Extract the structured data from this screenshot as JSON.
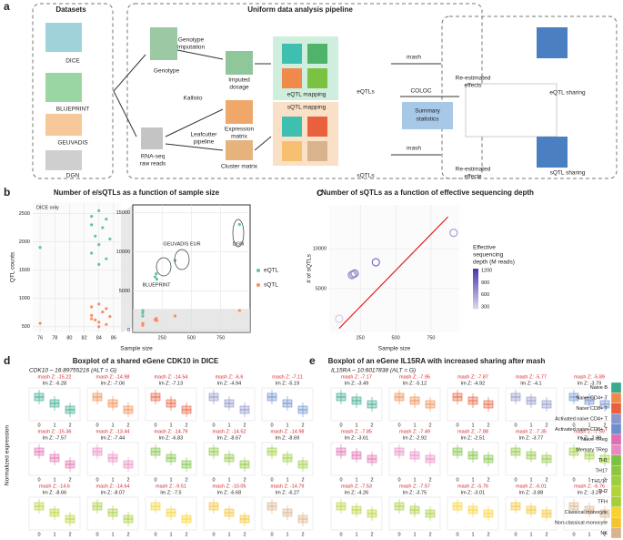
{
  "figure": {
    "panel_labels": [
      "a",
      "b",
      "c",
      "d",
      "e"
    ]
  },
  "panel_a": {
    "labels": [
      "Datasets",
      "DICE",
      "BLUEPRINT",
      "GEUVADIS",
      "DGN",
      "Uniform data analysis pipeline",
      "Genotype",
      "RNA-seq",
      "raw reads",
      "Genotype",
      "Imputation",
      "Imputed",
      "dosage",
      "Kallisto",
      "Expression",
      "matrix",
      "Leafcutter",
      "pipeline",
      "Cluster matrix",
      "eQTL mapping",
      "sQTL mapping",
      "eQTLs",
      "sQTLs",
      "mash",
      "COLOC",
      "Summary",
      "statistics",
      "mash",
      "Re-estimated",
      "effects",
      "eQTL sharing",
      "Re-estimated",
      "effects",
      "sQTL sharing"
    ]
  },
  "chart_data": [
    {
      "type": "scatter",
      "title": "Number of e/sQTLs as a function of sample size",
      "annotation": "DICE only",
      "ylabel": "QTL counts",
      "xlabel": "Sample size",
      "xlim": [
        75,
        87
      ],
      "ylim": [
        400,
        2700
      ],
      "xticks": [
        76,
        78,
        80,
        82,
        84,
        86
      ],
      "yticks": [
        500,
        1000,
        1500,
        2000,
        2500
      ],
      "grid": true,
      "series": [
        {
          "color": "#66c2a5",
          "x": [
            76,
            83,
            83,
            83.5,
            84,
            84,
            84.5,
            85,
            85,
            85.5,
            84,
            83
          ],
          "values": [
            1900,
            2450,
            2300,
            2100,
            2550,
            1950,
            2250,
            2400,
            1700,
            2050,
            1600,
            1800
          ]
        },
        {
          "color": "#fc8d62",
          "x": [
            76,
            83,
            83,
            83.5,
            84,
            84,
            84.5,
            85,
            85,
            85.5,
            84,
            83
          ],
          "values": [
            560,
            850,
            700,
            620,
            900,
            580,
            760,
            820,
            540,
            680,
            500,
            640
          ]
        }
      ]
    },
    {
      "type": "scatter",
      "annotations": [
        "GEUVADIS EUR",
        "DGN",
        "BLUEPRINT"
      ],
      "xlim": [
        0,
        1000
      ],
      "ylim": [
        -300,
        16000
      ],
      "xticks": [
        250,
        500,
        750
      ],
      "yticks": [
        0,
        5000,
        10000,
        15000
      ],
      "grid": true,
      "legend": "right",
      "series": [
        {
          "name": "eQTL",
          "color": "#66c2a5",
          "x": [
            84,
            85,
            86,
            190,
            200,
            205,
            360,
            910
          ],
          "values": [
            2200,
            1800,
            2500,
            6800,
            7200,
            6500,
            8900,
            13500
          ]
        },
        {
          "name": "sQTL",
          "color": "#fc8d62",
          "x": [
            84,
            85,
            86,
            190,
            200,
            205,
            360,
            910
          ],
          "values": [
            700,
            600,
            850,
            1300,
            1500,
            1200,
            1800,
            2500
          ]
        }
      ]
    },
    {
      "type": "scatter",
      "title": "Number of sQTLs as a function of effective sequencing depth",
      "ylabel": "# of sQTLs",
      "xlabel": "Sample size",
      "xlim": [
        30,
        950
      ],
      "ylim": [
        -500,
        15500
      ],
      "xticks": [
        250,
        500,
        750
      ],
      "yticks": [
        5000,
        10000
      ],
      "grid": true,
      "colorbar": {
        "title": [
          "Effective",
          "sequencing",
          "depth (M reads)"
        ],
        "ticks": [
          1200,
          900,
          600,
          300
        ],
        "clim": [
          250,
          1250
        ]
      },
      "series": [
        {
          "name": "sQTL",
          "x": [
            100,
            190,
            200,
            210,
            360,
            910
          ],
          "values": [
            1200,
            6700,
            6800,
            6900,
            8300,
            12000
          ],
          "depth": [
            300,
            700,
            650,
            750,
            900,
            600
          ]
        }
      ],
      "fit_line": {
        "color": "#e31a1c",
        "x": [
          100,
          870
        ],
        "values": [
          0,
          14000
        ]
      }
    }
  ],
  "panel_d": {
    "title": "Boxplot of a shared eGene CDK10 in DICE",
    "subtitle": "CDK10 – 16:89755216 (ALT = G)",
    "ylabel": "Normalized expression",
    "genotypes": [
      "0",
      "1",
      "2"
    ],
    "stats": [
      {
        "mash": "mash Z: -15.22",
        "lm": "lm Z: -6.28"
      },
      {
        "mash": "mash Z: -14.98",
        "lm": "lm Z: -7.06"
      },
      {
        "mash": "mash Z: -14.54",
        "lm": "lm Z: -7.13"
      },
      {
        "mash": "mash Z: -6.6",
        "lm": "lm Z: -4.94"
      },
      {
        "mash": "mash Z: -7.11",
        "lm": "lm Z: -5.19"
      },
      {
        "mash": "mash Z: -15.36",
        "lm": "lm Z: -7.57"
      },
      {
        "mash": "mash Z: -13.44",
        "lm": "lm Z: -7.44"
      },
      {
        "mash": "mash Z: -14.79",
        "lm": "lm Z: -6.83"
      },
      {
        "mash": "mash Z: -14.52",
        "lm": "lm Z: -8.67"
      },
      {
        "mash": "mash Z: -14.98",
        "lm": "lm Z: -8.69"
      },
      {
        "mash": "mash Z: -14.6",
        "lm": "lm Z: -8.66"
      },
      {
        "mash": "mash Z: -14.64",
        "lm": "lm Z: -8.07"
      },
      {
        "mash": "mash Z: -9.51",
        "lm": "lm Z: -7.5"
      },
      {
        "mash": "mash Z: -10.05",
        "lm": "lm Z: -6.68"
      },
      {
        "mash": "mash Z: -14.79",
        "lm": "lm Z: -6.27"
      }
    ]
  },
  "panel_e": {
    "title": "Boxplot of an eGene IL15RA with increased sharing after mash",
    "subtitle": "IL15RA – 10:6017838 (ALT = G)",
    "genotypes": [
      "0",
      "1",
      "2"
    ],
    "stats": [
      {
        "mash": "mash Z: -7.17",
        "lm": "lm Z: -3.49"
      },
      {
        "mash": "mash Z: -7.95",
        "lm": "lm Z: -5.12"
      },
      {
        "mash": "mash Z: -7.87",
        "lm": "lm Z: -4.92"
      },
      {
        "mash": "mash Z: -5.77",
        "lm": "lm Z: -4.1"
      },
      {
        "mash": "mash Z: -5.89",
        "lm": "lm Z: -3.79"
      },
      {
        "mash": "mash Z: -7.85",
        "lm": "lm Z: -3.61"
      },
      {
        "mash": "mash Z: -7.49",
        "lm": "lm Z: -2.92"
      },
      {
        "mash": "mash Z: -7.88",
        "lm": "lm Z: -2.51"
      },
      {
        "mash": "mash Z: -7.35",
        "lm": "lm Z: -3.77"
      },
      {
        "mash": "mash Z: -7.59",
        "lm": "lm Z: -2.38"
      },
      {
        "mash": "mash Z: -7.53",
        "lm": "lm Z: -4.26"
      },
      {
        "mash": "mash Z: -7.57",
        "lm": "lm Z: -3.75"
      },
      {
        "mash": "mash Z: -5.76",
        "lm": "lm Z: -3.01"
      },
      {
        "mash": "mash Z: -6.01",
        "lm": "lm Z: -3.88"
      },
      {
        "mash": "mash Z: -6.76",
        "lm": "lm Z: -3.24"
      }
    ]
  },
  "cell_types": [
    {
      "name": "Naive B",
      "color": "#3aaa8e"
    },
    {
      "name": "Naive CD4+ T",
      "color": "#f08a4b"
    },
    {
      "name": "Naive CD8+ T",
      "color": "#e8603c"
    },
    {
      "name": "Activated naive CD4+ T",
      "color": "#8e95c8"
    },
    {
      "name": "Activated naive CD8+ T",
      "color": "#6d8fcf"
    },
    {
      "name": "Naive TReg",
      "color": "#e06fb0"
    },
    {
      "name": "Memory TReg",
      "color": "#e88ac0"
    },
    {
      "name": "TH1",
      "color": "#7cc242"
    },
    {
      "name": "TH17",
      "color": "#8dc63f"
    },
    {
      "name": "TH1/17",
      "color": "#9ccf3d"
    },
    {
      "name": "TH2",
      "color": "#b5d334"
    },
    {
      "name": "TFH",
      "color": "#a6ce39"
    },
    {
      "name": "Classical monocyte",
      "color": "#f6d32d"
    },
    {
      "name": "Non-classical monocyte",
      "color": "#f4c430"
    },
    {
      "name": "NK",
      "color": "#d9b38c"
    }
  ]
}
